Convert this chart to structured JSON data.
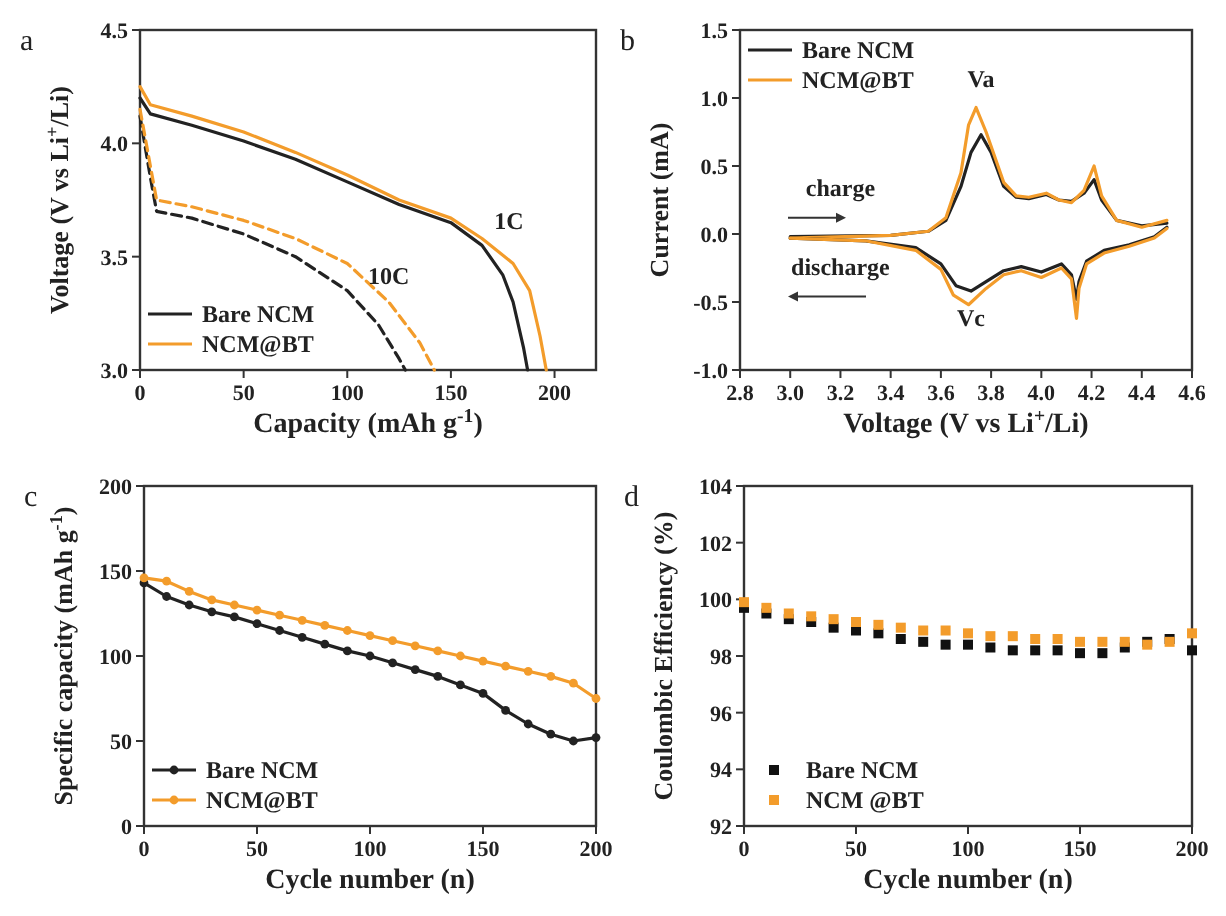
{
  "chart_data": [
    {
      "type": "line",
      "annotations": [
        "a",
        "1C",
        "10C"
      ],
      "xlabel": "Capacity (mAh g$^{-1}$)",
      "ylabel": "Voltage (V vs Li$^{+}$/Li)",
      "xlim": [
        0,
        220
      ],
      "xticks": [
        0,
        50,
        100,
        150,
        200
      ],
      "ylim": [
        3.0,
        4.5
      ],
      "yticks": [
        {
          "value": 3,
          "label": "3.0"
        },
        3.5,
        {
          "value": 4,
          "label": "4.0"
        },
        4.5
      ],
      "legend": "bottom left",
      "grid": false,
      "series": [
        {
          "name": "Bare NCM",
          "color": "#222222",
          "x": [
            0,
            5,
            25,
            50,
            75,
            100,
            125,
            150,
            165,
            175,
            180,
            185,
            187
          ],
          "values": [
            4.2,
            4.13,
            4.08,
            4.01,
            3.93,
            3.83,
            3.73,
            3.65,
            3.55,
            3.42,
            3.3,
            3.1,
            3.0
          ]
        },
        {
          "name": "NCM@BT",
          "color": "#f39c2b",
          "x": [
            0,
            5,
            25,
            50,
            75,
            100,
            125,
            150,
            165,
            180,
            188,
            193,
            196
          ],
          "values": [
            4.25,
            4.17,
            4.12,
            4.05,
            3.96,
            3.86,
            3.75,
            3.67,
            3.58,
            3.47,
            3.35,
            3.15,
            3.0
          ]
        },
        {
          "color": "#222222",
          "line_style": "dashed",
          "x": [
            0,
            5,
            8,
            25,
            50,
            75,
            100,
            115,
            125,
            128
          ],
          "values": [
            4.12,
            3.85,
            3.7,
            3.67,
            3.6,
            3.5,
            3.35,
            3.2,
            3.05,
            3.0
          ]
        },
        {
          "color": "#f39c2b",
          "line_style": "dashed",
          "x": [
            0,
            5,
            8,
            25,
            50,
            75,
            100,
            120,
            135,
            142
          ],
          "values": [
            4.15,
            3.9,
            3.75,
            3.72,
            3.66,
            3.58,
            3.47,
            3.3,
            3.12,
            3.0
          ]
        }
      ]
    },
    {
      "type": "line",
      "annotations": [
        "b",
        "Va",
        "Vc",
        "charge",
        "discharge"
      ],
      "xlabel": "Voltage (V vs Li$^{+}$/Li)",
      "ylabel": "Current (mA)",
      "xlim": [
        2.8,
        4.6
      ],
      "xticks": [
        2.8,
        {
          "value": 3,
          "label": "3.0"
        },
        3.2,
        3.4,
        3.6,
        3.8,
        {
          "value": 4,
          "label": "4.0"
        },
        4.2,
        4.4,
        4.6
      ],
      "ylim": [
        -1.0,
        1.5
      ],
      "yticks": [
        {
          "value": -1,
          "label": "-1.0"
        },
        -0.5,
        {
          "value": 0,
          "label": "0.0"
        },
        0.5,
        {
          "value": 1,
          "label": "1.0"
        },
        1.5
      ],
      "legend": "top left",
      "grid": false,
      "series": [
        {
          "name": "Bare NCM",
          "color": "#222222",
          "x": [
            3.0,
            3.4,
            3.55,
            3.62,
            3.68,
            3.72,
            3.76,
            3.8,
            3.85,
            3.9,
            3.95,
            4.02,
            4.07,
            4.12,
            4.17,
            4.21,
            4.24,
            4.3,
            4.4,
            4.5
          ],
          "values": [
            -0.02,
            -0.01,
            0.02,
            0.1,
            0.35,
            0.6,
            0.73,
            0.6,
            0.35,
            0.27,
            0.26,
            0.29,
            0.25,
            0.24,
            0.3,
            0.4,
            0.25,
            0.1,
            0.06,
            0.08
          ]
        },
        {
          "name": "NCM@BT",
          "color": "#f39c2b",
          "x": [
            3.0,
            3.4,
            3.55,
            3.62,
            3.68,
            3.71,
            3.74,
            3.78,
            3.85,
            3.9,
            3.95,
            4.02,
            4.07,
            4.12,
            4.17,
            4.21,
            4.24,
            4.3,
            4.4,
            4.5
          ],
          "values": [
            -0.03,
            -0.01,
            0.02,
            0.12,
            0.45,
            0.8,
            0.93,
            0.75,
            0.38,
            0.28,
            0.27,
            0.3,
            0.25,
            0.23,
            0.32,
            0.5,
            0.28,
            0.1,
            0.05,
            0.1
          ]
        },
        {
          "color": "#222222",
          "x": [
            3.0,
            3.3,
            3.5,
            3.6,
            3.66,
            3.72,
            3.78,
            3.85,
            3.92,
            4.0,
            4.08,
            4.12,
            4.14,
            4.15,
            4.18,
            4.25,
            4.35,
            4.45,
            4.5
          ],
          "values": [
            -0.03,
            -0.05,
            -0.1,
            -0.22,
            -0.38,
            -0.42,
            -0.35,
            -0.27,
            -0.24,
            -0.28,
            -0.22,
            -0.3,
            -0.48,
            -0.35,
            -0.2,
            -0.12,
            -0.08,
            -0.02,
            0.05
          ]
        },
        {
          "color": "#f39c2b",
          "x": [
            3.0,
            3.3,
            3.5,
            3.6,
            3.65,
            3.71,
            3.78,
            3.85,
            3.92,
            4.0,
            4.08,
            4.12,
            4.14,
            4.15,
            4.18,
            4.25,
            4.35,
            4.45,
            4.5
          ],
          "values": [
            -0.03,
            -0.05,
            -0.12,
            -0.26,
            -0.45,
            -0.52,
            -0.4,
            -0.3,
            -0.27,
            -0.32,
            -0.25,
            -0.33,
            -0.62,
            -0.4,
            -0.22,
            -0.14,
            -0.09,
            -0.03,
            0.04
          ]
        }
      ]
    },
    {
      "type": "line",
      "marker": "circle",
      "annotations": [
        "c"
      ],
      "xlabel": "Cycle number (n)",
      "ylabel": "Specific capacity (mAh g$^{-1}$)",
      "xlim": [
        0,
        200
      ],
      "xticks": [
        0,
        50,
        100,
        150,
        200
      ],
      "ylim": [
        0,
        200
      ],
      "yticks": [
        0,
        50,
        100,
        150,
        200
      ],
      "legend": "bottom left",
      "grid": false,
      "series": [
        {
          "name": "Bare NCM",
          "color": "#222222",
          "x": [
            0,
            10,
            20,
            30,
            40,
            50,
            60,
            70,
            80,
            90,
            100,
            110,
            120,
            130,
            140,
            150,
            160,
            170,
            180,
            190,
            200
          ],
          "values": [
            143,
            135,
            130,
            126,
            123,
            119,
            115,
            111,
            107,
            103,
            100,
            96,
            92,
            88,
            83,
            78,
            68,
            60,
            54,
            50,
            52
          ]
        },
        {
          "name": "NCM@BT",
          "color": "#f39c2b",
          "x": [
            0,
            10,
            20,
            30,
            40,
            50,
            60,
            70,
            80,
            90,
            100,
            110,
            120,
            130,
            140,
            150,
            160,
            170,
            180,
            190,
            200
          ],
          "values": [
            146,
            144,
            138,
            133,
            130,
            127,
            124,
            121,
            118,
            115,
            112,
            109,
            106,
            103,
            100,
            97,
            94,
            91,
            88,
            84,
            75
          ]
        }
      ]
    },
    {
      "type": "scatter",
      "marker": "square",
      "annotations": [
        "d"
      ],
      "xlabel": "Cycle number (n)",
      "ylabel": "Coulombic Efficiency (%)",
      "xlim": [
        0,
        200
      ],
      "xticks": [
        0,
        50,
        100,
        150,
        200
      ],
      "ylim": [
        92,
        104
      ],
      "yticks": [
        92,
        94,
        96,
        98,
        100,
        102,
        104
      ],
      "legend": "bottom left",
      "grid": false,
      "series": [
        {
          "name": "Bare NCM",
          "color": "#111111",
          "x": [
            0,
            10,
            20,
            30,
            40,
            50,
            60,
            70,
            80,
            90,
            100,
            110,
            120,
            130,
            140,
            150,
            160,
            170,
            180,
            190,
            200
          ],
          "values": [
            99.7,
            99.5,
            99.3,
            99.2,
            99.0,
            98.9,
            98.8,
            98.6,
            98.5,
            98.4,
            98.4,
            98.3,
            98.2,
            98.2,
            98.2,
            98.1,
            98.1,
            98.3,
            98.5,
            98.6,
            98.2
          ]
        },
        {
          "name": "NCM @BT",
          "color": "#f39c2b",
          "x": [
            0,
            10,
            20,
            30,
            40,
            50,
            60,
            70,
            80,
            90,
            100,
            110,
            120,
            130,
            140,
            150,
            160,
            170,
            180,
            190,
            200
          ],
          "values": [
            99.9,
            99.7,
            99.5,
            99.4,
            99.3,
            99.2,
            99.1,
            99.0,
            98.9,
            98.9,
            98.8,
            98.7,
            98.7,
            98.6,
            98.6,
            98.5,
            98.5,
            98.5,
            98.4,
            98.5,
            98.8
          ]
        }
      ]
    }
  ]
}
